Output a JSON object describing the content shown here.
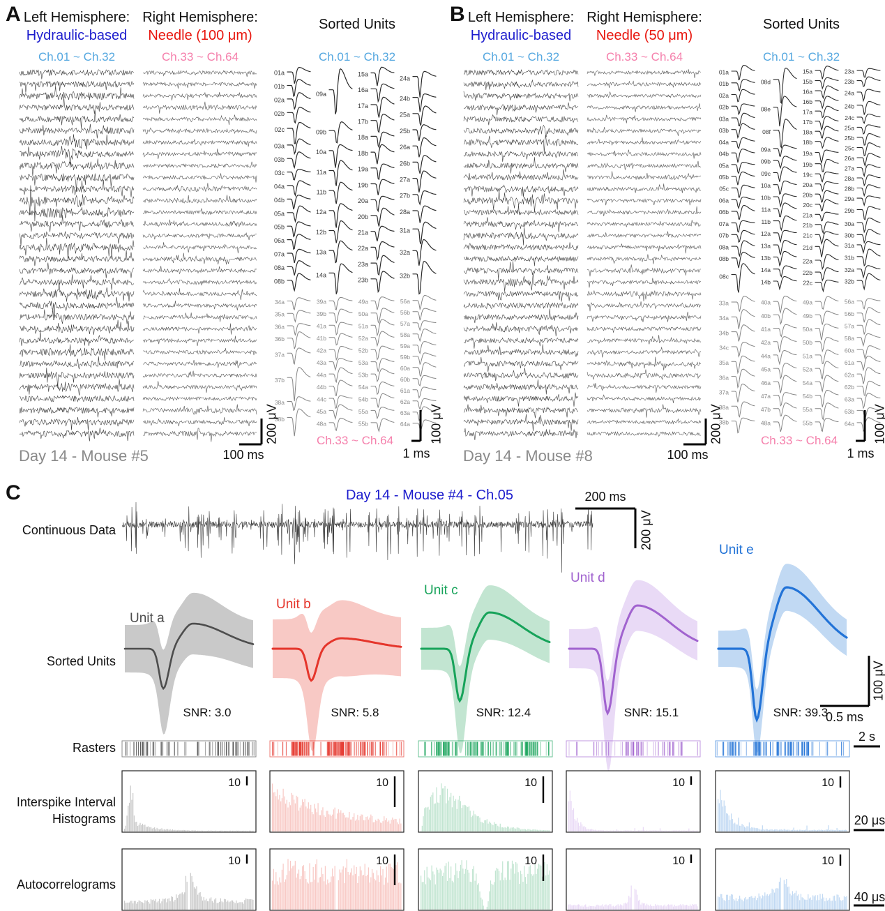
{
  "colors": {
    "blue": "#1c1ccd",
    "red": "#e8150d",
    "lightblue": "#56a8e0",
    "pink": "#f580ac",
    "gray": "#8a8a8a",
    "black": "#111111",
    "trace": "#2f2f2f"
  },
  "panel_a": {
    "letter": "A",
    "left": {
      "header1": "Left Hemisphere:",
      "header2": "Hydraulic-based",
      "channels": "Ch.01 ~ Ch.32",
      "n_traces": 32
    },
    "right": {
      "header1": "Right Hemisphere:",
      "header2": "Needle (100 μm)",
      "channels": "Ch.33 ~ Ch.64",
      "n_traces": 32
    },
    "sorted": {
      "title": "Sorted Units",
      "top_channels": "Ch.01 ~ Ch.32",
      "bottom_channels": "Ch.33 ~ Ch.64",
      "top_cols": [
        [
          "01a",
          "01b",
          "02a",
          "02b",
          "02c",
          "03a",
          "03b",
          "03c",
          "04a",
          "04b",
          "05a",
          "05b",
          "06a",
          "07a",
          "08a",
          "08b"
        ],
        [
          "09a",
          "09b",
          "10a",
          "11a",
          "11b",
          "12a",
          "12b",
          "13a",
          "14a"
        ],
        [
          "15a",
          "16a",
          "17a",
          "17b",
          "18a",
          "18b",
          "19a",
          "19b",
          "20a",
          "20b",
          "21a",
          "22a",
          "23a",
          "23b"
        ],
        [
          "24a",
          "24b",
          "25a",
          "25b",
          "26a",
          "26b",
          "27a",
          "27b",
          "28a",
          "31a",
          "32a",
          "32b"
        ]
      ],
      "bottom_cols": [
        [
          "34a",
          "35a",
          "36a",
          "36b",
          "37a",
          "37b",
          "38a",
          "38b"
        ],
        [
          "39a",
          "39b",
          "41a",
          "41b",
          "42a",
          "43a",
          "44a",
          "44b",
          "44c",
          "45a",
          "48a"
        ],
        [
          "49a",
          "50a",
          "51a",
          "52a",
          "52b",
          "53a",
          "53b",
          "54a",
          "54b",
          "55a",
          "55b"
        ],
        [
          "56a",
          "56b",
          "57a",
          "58a",
          "59a",
          "59b",
          "60a",
          "60b",
          "61a",
          "62a",
          "63a",
          "64a"
        ]
      ]
    },
    "footer": "Day 14 - Mouse #5",
    "scale": {
      "time": "100 ms",
      "volt": "200 μV",
      "unit_time": "1 ms",
      "unit_volt": "100 μV"
    }
  },
  "panel_b": {
    "letter": "B",
    "left": {
      "header1": "Left Hemisphere:",
      "header2": "Hydraulic-based",
      "channels": "Ch.01 ~ Ch.32",
      "n_traces": 32
    },
    "right": {
      "header1": "Right Hemisphere:",
      "header2": "Needle (50 μm)",
      "channels": "Ch.33 ~ Ch.64",
      "n_traces": 32
    },
    "sorted": {
      "title": "Sorted Units",
      "top_channels": "Ch.01 ~ Ch.32",
      "bottom_channels": "Ch.33 ~ Ch.64",
      "top_cols": [
        [
          "01a",
          "01b",
          "02a",
          "02b",
          "03a",
          "03b",
          "04a",
          "04b",
          "05a",
          "05b",
          "05c",
          "06a",
          "06b",
          "07a",
          "07b",
          "08a",
          "08b",
          "08c"
        ],
        [
          "08d",
          "08e",
          "08f",
          "09a",
          "09b",
          "09c",
          "10a",
          "10b",
          "11a",
          "11b",
          "12a",
          "13a",
          "13b",
          "14a",
          "14b"
        ],
        [
          "15a",
          "15b",
          "16a",
          "16b",
          "17a",
          "17b",
          "18a",
          "18b",
          "19a",
          "19b",
          "19c",
          "20a",
          "20b",
          "20c",
          "21a",
          "21b",
          "21c",
          "21d",
          "22a",
          "22b",
          "22c"
        ],
        [
          "23a",
          "23b",
          "24a",
          "24b",
          "24c",
          "25a",
          "25b",
          "25c",
          "26a",
          "27a",
          "28a",
          "28b",
          "29a",
          "29b",
          "30a",
          "30b",
          "31a",
          "31b",
          "32a",
          "32b"
        ]
      ],
      "bottom_cols": [
        [
          "33a",
          "34a",
          "34b",
          "34c",
          "35a",
          "36a",
          "37a",
          "38a",
          "38b"
        ],
        [
          "40a",
          "40b",
          "41a",
          "42a",
          "44a",
          "45a",
          "46a",
          "47a",
          "47b",
          "48a"
        ],
        [
          "49a",
          "49b",
          "50a",
          "50b",
          "51a",
          "52a",
          "54a",
          "54b",
          "55a",
          "55b"
        ],
        [
          "56a",
          "56b",
          "57a",
          "58a",
          "60a",
          "61a",
          "62a",
          "62b",
          "63a",
          "63b",
          "64a"
        ]
      ]
    },
    "footer": "Day 14 - Mouse #8",
    "scale": {
      "time": "100 ms",
      "volt": "200 μV",
      "unit_time": "1 ms",
      "unit_volt": "100 μV"
    }
  },
  "panel_c": {
    "letter": "C",
    "title": "Day 14 - Mouse #4 - Ch.05",
    "labels": {
      "continuous": "Continuous Data",
      "sorted": "Sorted Units",
      "rasters": "Rasters",
      "isi1": "Interspike Interval",
      "isi2": "Histograms",
      "acg": "Autocorrelograms"
    },
    "scale": {
      "cont_time": "200 ms",
      "cont_volt": "200 μV",
      "unit_volt": "100 μV",
      "unit_time": "0.5 ms",
      "raster_time": "2 s",
      "count": "10",
      "isi_time": "20 μs",
      "acg_time": "40 μs"
    },
    "units": [
      {
        "label": "Unit a",
        "snr": "SNR: 3.0",
        "line": "#4d4d4d",
        "band": "#c9c9c9"
      },
      {
        "label": "Unit b",
        "snr": "SNR: 5.8",
        "line": "#e5352b",
        "band": "#f8c9c5"
      },
      {
        "label": "Unit c",
        "snr": "SNR: 12.4",
        "line": "#17a35a",
        "band": "#c2e5d1"
      },
      {
        "label": "Unit d",
        "snr": "SNR: 15.1",
        "line": "#a163cf",
        "band": "#e9daf6"
      },
      {
        "label": "Unit e",
        "snr": "SNR: 39.3",
        "line": "#2273d7",
        "band": "#c1d9f3"
      }
    ]
  }
}
